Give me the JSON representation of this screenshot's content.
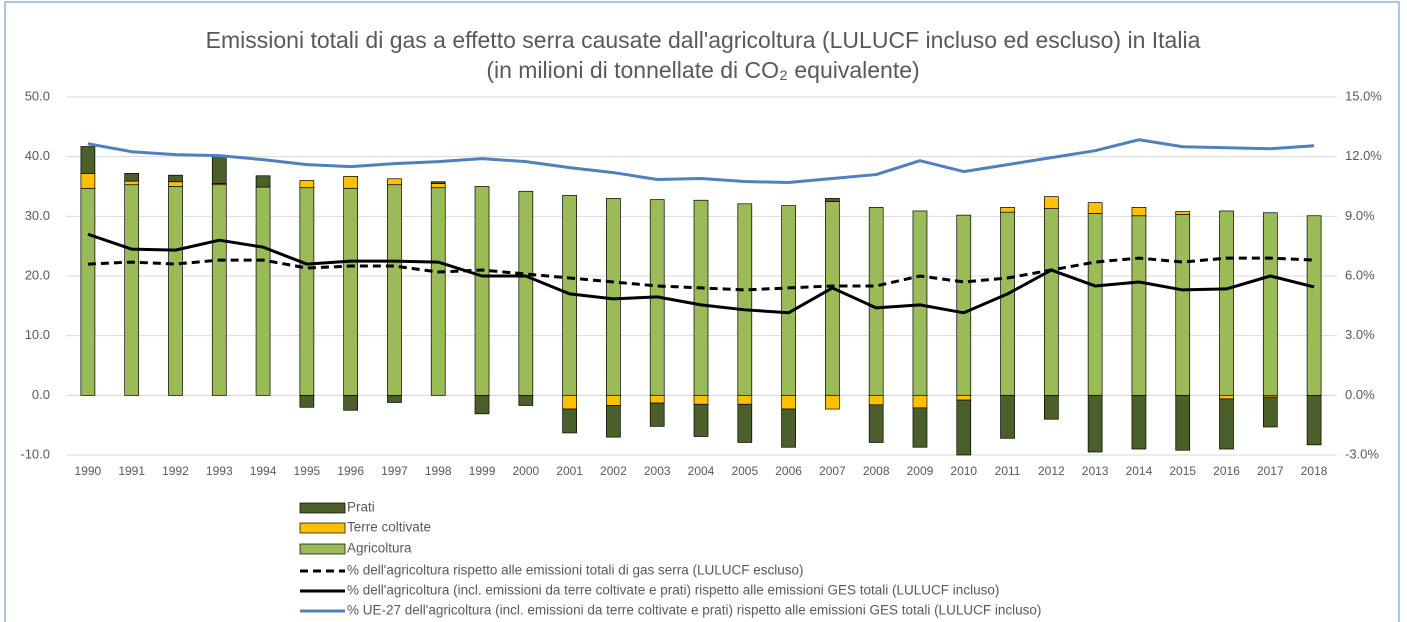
{
  "chart_data": {
    "type": "combo",
    "title": [
      "Emissioni totali di gas a effetto serra causate dall'agricoltura (LULUCF incluso ed escluso) in Italia",
      "(in milioni di tonnellate di CO₂ equivalente)"
    ],
    "categories": [
      "1990",
      "1991",
      "1992",
      "1993",
      "1994",
      "1995",
      "1996",
      "1997",
      "1998",
      "1999",
      "2000",
      "2001",
      "2002",
      "2003",
      "2004",
      "2005",
      "2006",
      "2007",
      "2008",
      "2009",
      "2010",
      "2011",
      "2012",
      "2013",
      "2014",
      "2015",
      "2016",
      "2017",
      "2018"
    ],
    "ylim": [
      -10,
      50
    ],
    "yticks": [
      {
        "value": 50,
        "label": "50.0"
      },
      {
        "value": 40,
        "label": "40.0"
      },
      {
        "value": 30,
        "label": "30.0"
      },
      {
        "value": 20,
        "label": "20.0"
      },
      {
        "value": 10,
        "label": "10.0"
      },
      {
        "value": 0,
        "label": "0.0"
      },
      {
        "value": -10,
        "label": "-10.0"
      }
    ],
    "y2lim": [
      -3,
      15
    ],
    "y2ticks": [
      {
        "value": 15,
        "label": "15.0%"
      },
      {
        "value": 12,
        "label": "12.0%"
      },
      {
        "value": 9,
        "label": "9.0%"
      },
      {
        "value": 6,
        "label": "6.0%"
      },
      {
        "value": 3,
        "label": "3.0%"
      },
      {
        "value": 0,
        "label": "0.0%"
      },
      {
        "value": -3,
        "label": "-3.0%"
      }
    ],
    "grid": true,
    "series": [
      {
        "name": "Prati",
        "kind": "bar",
        "color": "#4b5f2a",
        "values": [
          4.5,
          1.3,
          1.1,
          4.5,
          1.9,
          -2.0,
          -2.5,
          -1.2,
          0.3,
          -3.1,
          -1.7,
          -4.0,
          -5.3,
          -3.9,
          -5.4,
          -6.4,
          -6.4,
          0.5,
          -6.3,
          -6.6,
          -9.2,
          -7.2,
          -4.0,
          -9.5,
          -9.0,
          -9.2,
          -8.4,
          -5.0,
          -8.3
        ]
      },
      {
        "name": "Terre coltivate",
        "kind": "bar",
        "color": "#ffc000",
        "values": [
          2.5,
          0.6,
          0.8,
          0.2,
          0,
          1.2,
          2.0,
          1.0,
          0.7,
          0,
          0,
          -2.3,
          -1.7,
          -1.3,
          -1.5,
          -1.5,
          -2.3,
          -2.3,
          -1.6,
          -2.1,
          -0.8,
          0.8,
          2.0,
          1.8,
          1.4,
          0.5,
          -0.6,
          -0.3,
          0
        ]
      },
      {
        "name": "Agricoltura",
        "kind": "bar",
        "color": "#9bbb59",
        "values": [
          34.7,
          35.3,
          35.0,
          35.3,
          34.9,
          34.8,
          34.7,
          35.3,
          34.8,
          35.0,
          34.2,
          33.5,
          33.0,
          32.8,
          32.7,
          32.1,
          31.8,
          32.5,
          31.5,
          30.9,
          30.2,
          30.7,
          31.3,
          30.5,
          30.1,
          30.3,
          30.9,
          30.6,
          30.1
        ]
      },
      {
        "name": "% dell'agricoltura rispetto alle emissioni totali di gas serra (LULUCF escluso)",
        "kind": "line",
        "axis": "y2",
        "color": "#000000",
        "dashed": true,
        "values": [
          6.6,
          6.7,
          6.6,
          6.8,
          6.8,
          6.4,
          6.5,
          6.5,
          6.2,
          6.3,
          6.1,
          5.9,
          5.7,
          5.5,
          5.4,
          5.3,
          5.4,
          5.5,
          5.5,
          6.0,
          5.7,
          5.9,
          6.3,
          6.7,
          6.9,
          6.7,
          6.9,
          6.9,
          6.8
        ]
      },
      {
        "name": "% dell'agricoltura (incl. emissioni da terre coltivate e prati) rispetto alle emissioni GES totali (LULUCF incluso)",
        "kind": "line",
        "axis": "y2",
        "color": "#000000",
        "values": [
          8.1,
          7.35,
          7.3,
          7.8,
          7.45,
          6.6,
          6.75,
          6.75,
          6.7,
          6.0,
          6.0,
          5.1,
          4.85,
          4.95,
          4.55,
          4.3,
          4.15,
          5.4,
          4.4,
          4.55,
          4.15,
          5.1,
          6.3,
          5.5,
          5.7,
          5.3,
          5.35,
          6.0,
          5.45
        ]
      },
      {
        "name": "% UE-27 dell'agricoltura (incl. emissioni da terre coltivate e prati) rispetto alle emissioni GES totali (LULUCF incluso)",
        "kind": "line",
        "axis": "y2",
        "color": "#4f81bd",
        "values": [
          12.65,
          12.25,
          12.1,
          12.05,
          11.85,
          11.6,
          11.5,
          11.65,
          11.75,
          11.9,
          11.75,
          11.45,
          11.2,
          10.85,
          10.9,
          10.75,
          10.7,
          10.9,
          11.1,
          11.8,
          11.25,
          11.6,
          11.95,
          12.3,
          12.85,
          12.5,
          12.45,
          12.4,
          12.55
        ]
      }
    ]
  }
}
